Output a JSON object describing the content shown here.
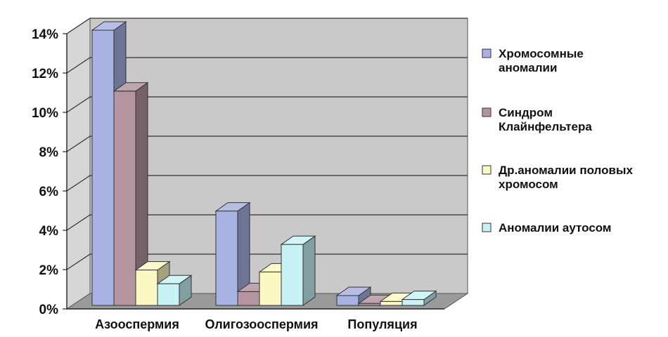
{
  "chart_data": {
    "type": "bar",
    "categories": [
      "Азооспермия",
      "Олигозооспермия",
      "Популяция"
    ],
    "series": [
      {
        "name": "Хромосомные аномалии",
        "legend_lines": [
          "Хромосомные",
          "аномалии"
        ],
        "values": [
          14,
          4.8,
          0.5
        ],
        "color": "#a9b3e3"
      },
      {
        "name": "Синдром Клайнфельтера",
        "legend_lines": [
          "Синдром",
          "Клайнфельтера"
        ],
        "values": [
          10.9,
          0.7,
          0.1
        ],
        "color": "#b4959f"
      },
      {
        "name": "Др.аномалии половых хромосом",
        "legend_lines": [
          "Др.аномалии половых",
          "хромосом"
        ],
        "values": [
          1.8,
          1.7,
          0.2
        ],
        "color": "#fbf8c4"
      },
      {
        "name": "Аномалии аутосом",
        "legend_lines": [
          "Аномалии аутосом"
        ],
        "values": [
          1.1,
          3.1,
          0.3
        ],
        "color": "#c7f3f6"
      }
    ],
    "y_ticks": [
      "0%",
      "2%",
      "4%",
      "6%",
      "8%",
      "10%",
      "12%",
      "14%"
    ],
    "ylim": [
      0,
      14
    ],
    "grid": true,
    "legend_position": "right",
    "title": "",
    "xlabel": "",
    "ylabel": ""
  }
}
